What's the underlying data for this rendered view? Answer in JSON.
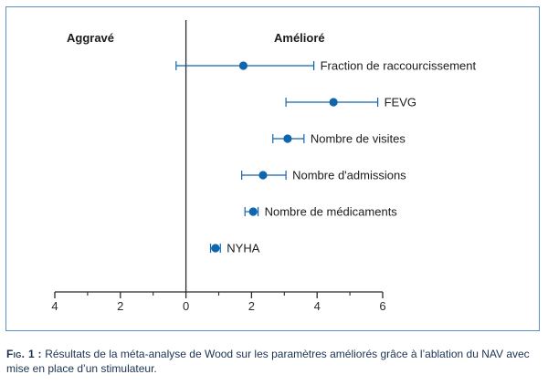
{
  "chart_data": {
    "type": "forest",
    "header_left": "Aggravé",
    "header_right": "Amélioré",
    "xlim": [
      -4,
      6
    ],
    "ticks": [
      {
        "value": -4,
        "label": "4"
      },
      {
        "value": -2,
        "label": "2"
      },
      {
        "value": 0,
        "label": "0"
      },
      {
        "value": 2,
        "label": "2"
      },
      {
        "value": 4,
        "label": "4"
      },
      {
        "value": 6,
        "label": "6"
      }
    ],
    "minor_ticks": [
      -3,
      -1,
      1,
      3,
      5
    ],
    "rows": [
      {
        "label": "Fraction de raccourcissement",
        "estimate": 1.75,
        "lower": -0.3,
        "upper": 3.9
      },
      {
        "label": "FEVG",
        "estimate": 4.5,
        "lower": 3.05,
        "upper": 5.85
      },
      {
        "label": "Nombre de visites",
        "estimate": 3.1,
        "lower": 2.65,
        "upper": 3.6
      },
      {
        "label": "Nombre d'admissions",
        "estimate": 2.35,
        "lower": 1.7,
        "upper": 3.05
      },
      {
        "label": "Nombre de médicaments",
        "estimate": 2.05,
        "lower": 1.8,
        "upper": 2.2
      },
      {
        "label": "NYHA",
        "estimate": 0.9,
        "lower": 0.75,
        "upper": 1.05
      }
    ],
    "colors": {
      "marker": "#1066ad",
      "axis": "#2a2a2a",
      "frame": "#5b8fc6"
    }
  },
  "caption": {
    "label": "Fig. 1 :",
    "text": " Résultats de la méta-analyse de Wood sur les paramètres améliorés grâce à l’ablation du NAV avec mise en place d’un stimulateur."
  }
}
